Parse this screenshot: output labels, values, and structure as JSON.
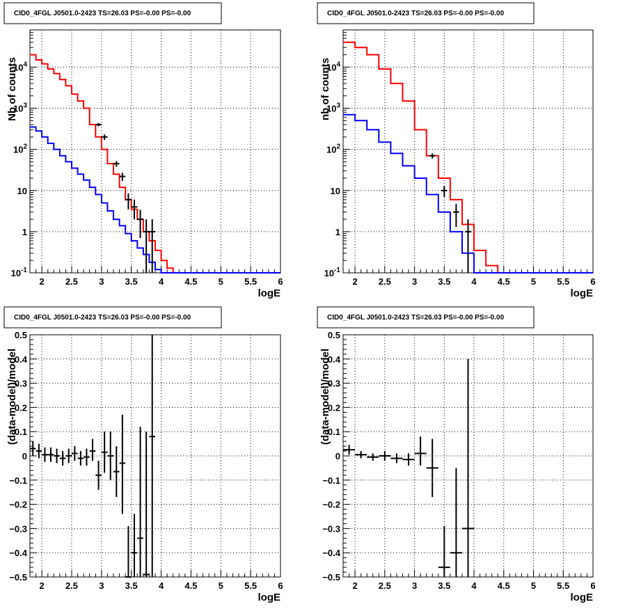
{
  "chart_data": [
    {
      "type": "line",
      "title": "CID0_4FGL J0501.0-2423 TS=26.03 PS=-0.00 PS=-0.00",
      "xlabel": "logE",
      "ylabel": "Nb of counts",
      "xlim": [
        1.8,
        6.0
      ],
      "ylim": [
        0.1,
        80000
      ],
      "yscale": "log",
      "grid": true,
      "xticks": [
        "2",
        "2.5",
        "3",
        "3.5",
        "4",
        "4.5",
        "5",
        "5.5",
        "6"
      ],
      "yticks": [
        "10^-1",
        "1",
        "10",
        "10^2",
        "10^3",
        "10^4"
      ],
      "series": [
        {
          "role": "model-total",
          "color": "#ff0000",
          "style": "step",
          "bin_edges": [
            1.8,
            1.9,
            2.0,
            2.1,
            2.2,
            2.3,
            2.4,
            2.5,
            2.6,
            2.7,
            2.8,
            2.9,
            3.0,
            3.1,
            3.2,
            3.3,
            3.4,
            3.5,
            3.6,
            3.7,
            3.8,
            3.9,
            4.0,
            4.1,
            4.2,
            4.3,
            4.4,
            4.5,
            4.6,
            4.7,
            4.8,
            4.9,
            5.0,
            5.1,
            5.2,
            5.3,
            5.4,
            5.5,
            5.6,
            5.7,
            5.8,
            5.9,
            6.0
          ],
          "values": [
            20000,
            15000,
            12000,
            9000,
            7000,
            5000,
            3500,
            2200,
            1500,
            1000,
            400,
            200,
            100,
            45,
            25,
            12,
            6,
            3.5,
            2.0,
            1.0,
            0.6,
            0.35,
            0.2,
            0.13,
            0.1,
            0.1,
            0.1,
            0.1,
            0.1,
            0.1,
            0.1,
            0.1,
            0.1,
            0.1,
            0.1,
            0.1,
            0.1,
            0.1,
            0.1,
            0.1,
            0.1,
            0.1
          ]
        },
        {
          "role": "model-component",
          "color": "#0000ff",
          "style": "step",
          "bin_edges": [
            1.8,
            1.9,
            2.0,
            2.1,
            2.2,
            2.3,
            2.4,
            2.5,
            2.6,
            2.7,
            2.8,
            2.9,
            3.0,
            3.1,
            3.2,
            3.3,
            3.4,
            3.5,
            3.6,
            3.7,
            3.8,
            3.9,
            4.0,
            4.1,
            4.2,
            4.3,
            4.4,
            4.5,
            4.6,
            4.7,
            4.8,
            4.9,
            5.0,
            5.1,
            5.2,
            5.3,
            5.4,
            5.5,
            5.6,
            5.7,
            5.8,
            5.9,
            6.0
          ],
          "values": [
            350,
            280,
            200,
            140,
            100,
            70,
            50,
            35,
            25,
            18,
            12,
            8,
            5,
            3.2,
            2.0,
            1.4,
            0.9,
            0.6,
            0.4,
            0.28,
            0.18,
            0.12,
            0.1,
            0.1,
            0.1,
            0.1,
            0.1,
            0.1,
            0.1,
            0.1,
            0.1,
            0.1,
            0.1,
            0.1,
            0.1,
            0.1,
            0.1,
            0.1,
            0.1,
            0.1,
            0.1,
            0.1
          ]
        },
        {
          "role": "data",
          "color": "#000000",
          "style": "errorbar",
          "points": [
            {
              "x": 2.95,
              "y": 400,
              "lo": 360,
              "hi": 440
            },
            {
              "x": 3.05,
              "y": 200,
              "lo": 170,
              "hi": 230
            },
            {
              "x": 3.25,
              "y": 45,
              "lo": 38,
              "hi": 52
            },
            {
              "x": 3.35,
              "y": 22,
              "lo": 17,
              "hi": 27
            },
            {
              "x": 3.45,
              "y": 6,
              "lo": 3.5,
              "hi": 8.5
            },
            {
              "x": 3.55,
              "y": 4,
              "lo": 2.0,
              "hi": 6.0
            },
            {
              "x": 3.65,
              "y": 2,
              "lo": 0.7,
              "hi": 3.4
            },
            {
              "x": 3.75,
              "y": 1,
              "lo": 0.1,
              "hi": 2.0
            },
            {
              "x": 3.85,
              "y": 1,
              "lo": 0.1,
              "hi": 2.0
            }
          ]
        }
      ]
    },
    {
      "type": "line",
      "title": "CID0_4FGL J0501.0-2423 TS=26.03 PS=-0.00 PS=-0.00",
      "xlabel": "logE",
      "ylabel": "nb of counts",
      "xlim": [
        1.8,
        6.0
      ],
      "ylim": [
        0.1,
        80000
      ],
      "yscale": "log",
      "grid": true,
      "xticks": [
        "2",
        "2.5",
        "3",
        "3.5",
        "4",
        "4.5",
        "5",
        "5.5",
        "6"
      ],
      "yticks": [
        "10^-1",
        "1",
        "10",
        "10^2",
        "10^3",
        "10^4"
      ],
      "series": [
        {
          "role": "model-total",
          "color": "#ff0000",
          "style": "step",
          "bin_edges": [
            1.8,
            2.0,
            2.2,
            2.4,
            2.6,
            2.8,
            3.0,
            3.2,
            3.4,
            3.6,
            3.8,
            4.0,
            4.2,
            4.4,
            4.6,
            4.8,
            5.0,
            5.2,
            5.4,
            5.6,
            5.8,
            6.0
          ],
          "values": [
            40000,
            30000,
            20000,
            9000,
            4000,
            1500,
            300,
            70,
            20,
            6,
            1.5,
            0.35,
            0.15,
            0.1,
            0.1,
            0.1,
            0.1,
            0.1,
            0.1,
            0.1,
            0.1
          ]
        },
        {
          "role": "model-component",
          "color": "#0000ff",
          "style": "step",
          "bin_edges": [
            1.8,
            2.0,
            2.2,
            2.4,
            2.6,
            2.8,
            3.0,
            3.2,
            3.4,
            3.6,
            3.8,
            4.0,
            4.2,
            4.4,
            4.6,
            4.8,
            5.0,
            5.2,
            5.4,
            5.6,
            5.8,
            6.0
          ],
          "values": [
            700,
            500,
            300,
            150,
            80,
            40,
            20,
            8,
            3,
            1,
            0.3,
            0.1,
            0.1,
            0.1,
            0.1,
            0.1,
            0.1,
            0.1,
            0.1,
            0.1,
            0.1
          ]
        },
        {
          "role": "data",
          "color": "#000000",
          "style": "errorbar",
          "points": [
            {
              "x": 3.3,
              "y": 70,
              "lo": 60,
              "hi": 80
            },
            {
              "x": 3.5,
              "y": 10,
              "lo": 7,
              "hi": 13
            },
            {
              "x": 3.7,
              "y": 3,
              "lo": 1.3,
              "hi": 4.7
            },
            {
              "x": 3.9,
              "y": 1,
              "lo": 0.1,
              "hi": 2.0
            }
          ]
        }
      ]
    },
    {
      "type": "scatter",
      "title": "CID0_4FGL J0501.0-2423 TS=26.03 PS=-0.00 PS=-0.00",
      "xlabel": "logE",
      "ylabel": "(data-model)/model",
      "xlim": [
        1.8,
        6.0
      ],
      "ylim": [
        -0.5,
        0.5
      ],
      "grid": true,
      "xticks": [
        "2",
        "2.5",
        "3",
        "3.5",
        "4",
        "4.5",
        "5",
        "5.5",
        "6"
      ],
      "yticks": [
        "−0.5",
        "−0.4",
        "−0.3",
        "−0.2",
        "−0.1",
        "0",
        "0.1",
        "0.2",
        "0.3",
        "0.4",
        "0.5"
      ],
      "series": [
        {
          "role": "residual",
          "color": "#000000",
          "style": "errorbar",
          "xerr": 0.05,
          "points": [
            {
              "x": 1.85,
              "y": 0.03,
              "lo": 0.0,
              "hi": 0.06
            },
            {
              "x": 1.95,
              "y": 0.02,
              "lo": -0.01,
              "hi": 0.05
            },
            {
              "x": 2.05,
              "y": 0.005,
              "lo": -0.025,
              "hi": 0.035
            },
            {
              "x": 2.15,
              "y": 0.005,
              "lo": -0.025,
              "hi": 0.035
            },
            {
              "x": 2.25,
              "y": 0.0,
              "lo": -0.03,
              "hi": 0.03
            },
            {
              "x": 2.35,
              "y": -0.01,
              "lo": -0.04,
              "hi": 0.02
            },
            {
              "x": 2.45,
              "y": 0.0,
              "lo": -0.03,
              "hi": 0.03
            },
            {
              "x": 2.55,
              "y": 0.01,
              "lo": -0.02,
              "hi": 0.04
            },
            {
              "x": 2.65,
              "y": -0.01,
              "lo": -0.04,
              "hi": 0.02
            },
            {
              "x": 2.75,
              "y": -0.005,
              "lo": -0.04,
              "hi": 0.03
            },
            {
              "x": 2.85,
              "y": 0.02,
              "lo": -0.02,
              "hi": 0.07
            },
            {
              "x": 2.95,
              "y": -0.08,
              "lo": -0.14,
              "hi": -0.02
            },
            {
              "x": 3.05,
              "y": 0.015,
              "lo": -0.07,
              "hi": 0.1
            },
            {
              "x": 3.15,
              "y": 0.0,
              "lo": -0.1,
              "hi": 0.1
            },
            {
              "x": 3.25,
              "y": -0.065,
              "lo": -0.17,
              "hi": 0.04
            },
            {
              "x": 3.35,
              "y": -0.03,
              "lo": -0.24,
              "hi": 0.17
            },
            {
              "x": 3.45,
              "y": -0.5,
              "lo": -0.5,
              "hi": -0.29
            },
            {
              "x": 3.55,
              "y": -0.4,
              "lo": -0.5,
              "hi": -0.24
            },
            {
              "x": 3.65,
              "y": -0.34,
              "lo": -0.5,
              "hi": 0.12
            },
            {
              "x": 3.75,
              "y": -0.49,
              "lo": -0.5,
              "hi": 0.1
            },
            {
              "x": 3.85,
              "y": 0.08,
              "lo": -0.5,
              "hi": 0.5
            }
          ]
        }
      ]
    },
    {
      "type": "scatter",
      "title": "CID0_4FGL J0501.0-2423 TS=26.03 PS=-0.00 PS=-0.00",
      "xlabel": "logE",
      "ylabel": "(data-model)/model",
      "xlim": [
        1.8,
        6.0
      ],
      "ylim": [
        -0.5,
        0.5
      ],
      "grid": true,
      "xticks": [
        "2",
        "2.5",
        "3",
        "3.5",
        "4",
        "4.5",
        "5",
        "5.5",
        "6"
      ],
      "yticks": [
        "−0.5",
        "−0.4",
        "−0.3",
        "−0.2",
        "−0.1",
        "0",
        "0.1",
        "0.2",
        "0.3",
        "0.4",
        "0.5"
      ],
      "series": [
        {
          "role": "residual",
          "color": "#000000",
          "style": "errorbar",
          "xerr": 0.1,
          "points": [
            {
              "x": 1.9,
              "y": 0.025,
              "lo": 0.005,
              "hi": 0.045
            },
            {
              "x": 2.1,
              "y": 0.005,
              "lo": -0.01,
              "hi": 0.02
            },
            {
              "x": 2.3,
              "y": -0.005,
              "lo": -0.02,
              "hi": 0.01
            },
            {
              "x": 2.5,
              "y": 0.0,
              "lo": -0.02,
              "hi": 0.02
            },
            {
              "x": 2.7,
              "y": -0.01,
              "lo": -0.03,
              "hi": 0.01
            },
            {
              "x": 2.9,
              "y": -0.015,
              "lo": -0.04,
              "hi": 0.01
            },
            {
              "x": 3.1,
              "y": 0.01,
              "lo": -0.04,
              "hi": 0.08
            },
            {
              "x": 3.3,
              "y": -0.05,
              "lo": -0.17,
              "hi": 0.07
            },
            {
              "x": 3.5,
              "y": -0.46,
              "lo": -0.5,
              "hi": -0.29
            },
            {
              "x": 3.7,
              "y": -0.4,
              "lo": -0.5,
              "hi": -0.05
            },
            {
              "x": 3.9,
              "y": -0.3,
              "lo": -0.5,
              "hi": 0.4
            }
          ]
        }
      ]
    }
  ]
}
